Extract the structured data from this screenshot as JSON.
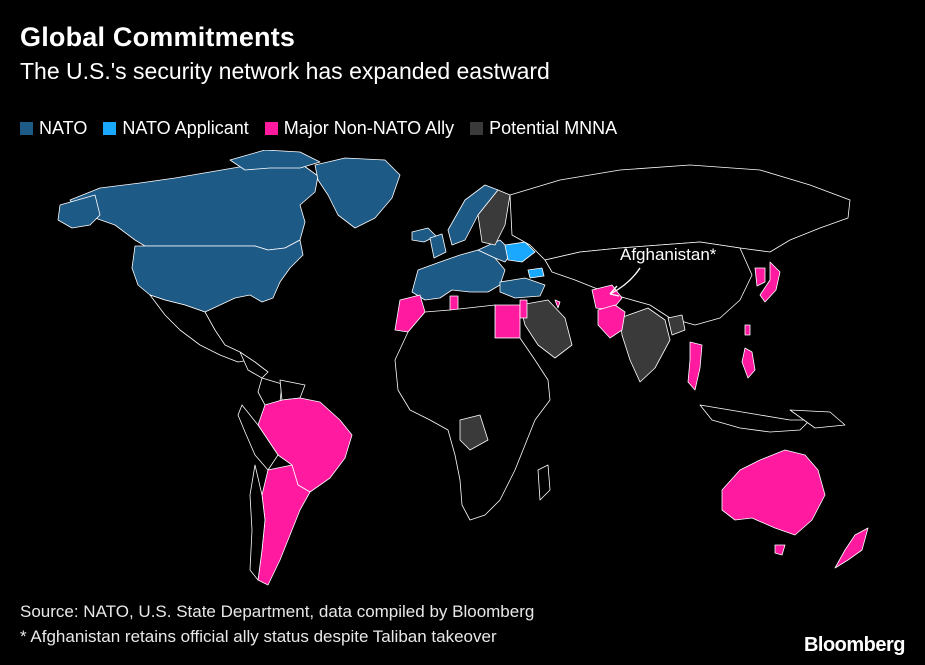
{
  "title": "Global Commitments",
  "subtitle": "The U.S.'s security network has expanded eastward",
  "legend": [
    {
      "label": "NATO",
      "color": "#1e5a86"
    },
    {
      "label": "NATO Applicant",
      "color": "#1aa8ff"
    },
    {
      "label": "Major Non-NATO Ally",
      "color": "#ff1aa0"
    },
    {
      "label": "Potential MNNA",
      "color": "#3a3a3a"
    }
  ],
  "annotation": "Afghanistan*",
  "source": "Source: NATO, U.S. State Department, data compiled by Bloomberg",
  "footnote": "* Afghanistan retains official ally status despite Taliban takeover",
  "brand": "Bloomberg",
  "colors": {
    "land_other": "#000000",
    "border": "#ffffff"
  }
}
